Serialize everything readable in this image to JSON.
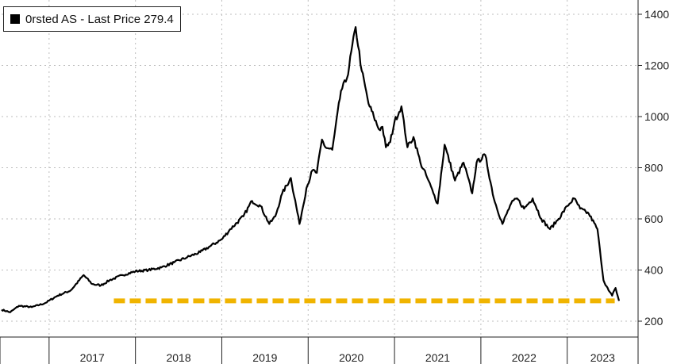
{
  "legend": {
    "label": "0rsted AS - Last Price 279.4",
    "swatch_color": "#000000"
  },
  "chart_data": {
    "type": "line",
    "title": "",
    "xlabel": "",
    "ylabel": "",
    "ylim": [
      180,
      1420
    ],
    "y_ticks": [
      200,
      400,
      600,
      800,
      1000,
      1200,
      1400
    ],
    "x_tick_labels": [
      "2017",
      "2018",
      "2019",
      "2020",
      "2021",
      "2022",
      "2023"
    ],
    "xlim": [
      2016.45,
      2023.6
    ],
    "grid": true,
    "legend_position": "top-left",
    "series": [
      {
        "name": "0rsted AS - Last Price 279.4",
        "color": "#000000",
        "x": [
          2016.45,
          2016.55,
          2016.65,
          2016.8,
          2016.95,
          2017.1,
          2017.25,
          2017.4,
          2017.5,
          2017.6,
          2017.7,
          2017.85,
          2018.0,
          2018.15,
          2018.3,
          2018.45,
          2018.6,
          2018.75,
          2018.85,
          2019.0,
          2019.1,
          2019.25,
          2019.35,
          2019.45,
          2019.55,
          2019.62,
          2019.7,
          2019.8,
          2019.9,
          2019.98,
          2020.05,
          2020.1,
          2020.16,
          2020.2,
          2020.28,
          2020.38,
          2020.45,
          2020.55,
          2020.62,
          2020.7,
          2020.76,
          2020.82,
          2020.86,
          2020.9,
          2020.95,
          2021.0,
          2021.08,
          2021.15,
          2021.22,
          2021.3,
          2021.38,
          2021.45,
          2021.5,
          2021.58,
          2021.7,
          2021.8,
          2021.9,
          2021.95,
          2022.05,
          2022.15,
          2022.25,
          2022.35,
          2022.42,
          2022.5,
          2022.6,
          2022.7,
          2022.8,
          2022.9,
          2023.0,
          2023.08,
          2023.15,
          2023.25,
          2023.35,
          2023.42,
          2023.48,
          2023.52,
          2023.56,
          2023.6
        ],
        "values": [
          245,
          235,
          260,
          255,
          270,
          300,
          320,
          380,
          345,
          340,
          360,
          380,
          395,
          400,
          410,
          430,
          450,
          470,
          490,
          520,
          560,
          610,
          670,
          650,
          580,
          610,
          700,
          760,
          580,
          720,
          790,
          780,
          910,
          880,
          870,
          1100,
          1150,
          1350,
          1180,
          1050,
          1000,
          950,
          960,
          880,
          900,
          980,
          1040,
          880,
          920,
          820,
          760,
          700,
          660,
          890,
          750,
          820,
          700,
          820,
          850,
          680,
          580,
          660,
          680,
          640,
          680,
          600,
          560,
          600,
          650,
          680,
          640,
          620,
          560,
          360,
          320,
          300,
          330,
          279.4
        ]
      }
    ],
    "reference_line": {
      "value": 279.4,
      "x_start": 2017.75,
      "x_end": 2023.55,
      "color": "#f0b400",
      "style": "dashed"
    }
  }
}
